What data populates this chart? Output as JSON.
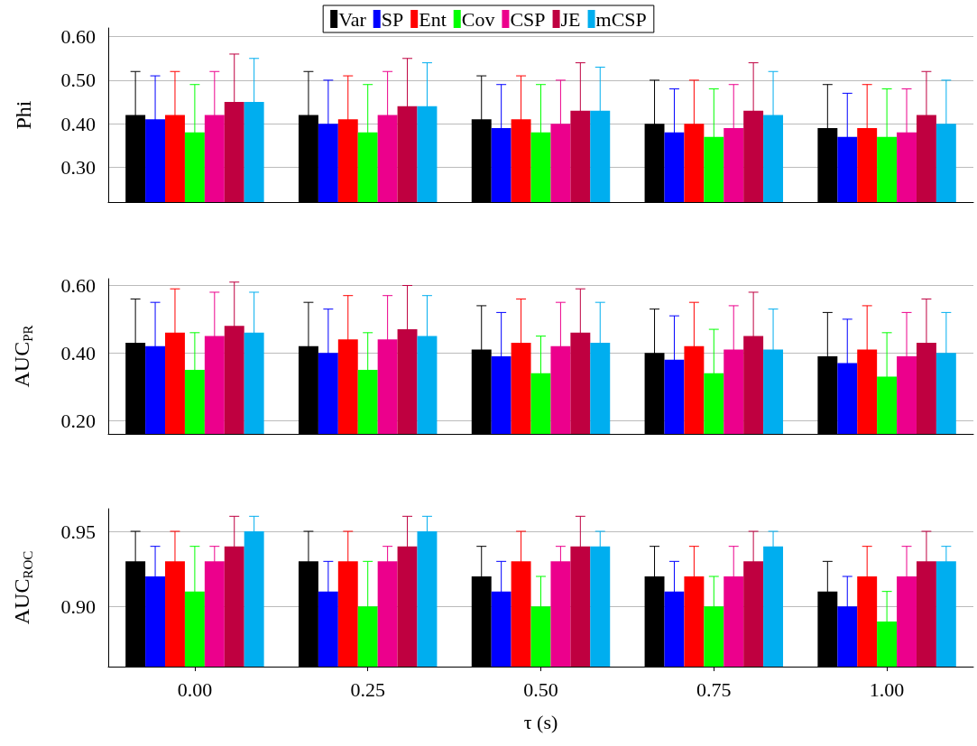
{
  "chart_data": [
    {
      "type": "bar",
      "ylabel": "Phi",
      "categories": [
        "0.00",
        "0.25",
        "0.50",
        "0.75",
        "1.00"
      ],
      "ylim": [
        0.22,
        0.62
      ],
      "yticks": [
        {
          "value": 0.3,
          "label": "0.30"
        },
        {
          "value": 0.4,
          "label": "0.40"
        },
        {
          "value": 0.5,
          "label": "0.50"
        },
        {
          "value": 0.6,
          "label": "0.60"
        }
      ],
      "grid": "y",
      "legend": "top",
      "tick_labels": "y",
      "series": [
        {
          "name": "Var",
          "color": "#000000",
          "values": [
            0.42,
            0.42,
            0.41,
            0.4,
            0.39
          ],
          "errors": [
            0.1,
            0.1,
            0.1,
            0.1,
            0.1
          ]
        },
        {
          "name": "SP",
          "color": "#0000ff",
          "values": [
            0.41,
            0.4,
            0.39,
            0.38,
            0.37
          ],
          "errors": [
            0.1,
            0.1,
            0.1,
            0.1,
            0.1
          ]
        },
        {
          "name": "Ent",
          "color": "#ff0000",
          "values": [
            0.42,
            0.41,
            0.41,
            0.4,
            0.39
          ],
          "errors": [
            0.1,
            0.1,
            0.1,
            0.1,
            0.1
          ]
        },
        {
          "name": "Cov",
          "color": "#00ff00",
          "values": [
            0.38,
            0.38,
            0.38,
            0.37,
            0.37
          ],
          "errors": [
            0.11,
            0.11,
            0.11,
            0.11,
            0.11
          ]
        },
        {
          "name": "CSP",
          "color": "#ec008c",
          "values": [
            0.42,
            0.42,
            0.4,
            0.39,
            0.38
          ],
          "errors": [
            0.1,
            0.1,
            0.1,
            0.1,
            0.1
          ]
        },
        {
          "name": "JE",
          "color": "#bf0040",
          "values": [
            0.45,
            0.44,
            0.43,
            0.43,
            0.42
          ],
          "errors": [
            0.11,
            0.11,
            0.11,
            0.11,
            0.1
          ]
        },
        {
          "name": "mCSP",
          "color": "#00aeef",
          "values": [
            0.45,
            0.44,
            0.43,
            0.42,
            0.4
          ],
          "errors": [
            0.1,
            0.1,
            0.1,
            0.1,
            0.1
          ]
        }
      ]
    },
    {
      "type": "bar",
      "ylabel": "AUC$_{PR}$",
      "categories": [
        "0.00",
        "0.25",
        "0.50",
        "0.75",
        "1.00"
      ],
      "ylim": [
        0.16,
        0.62
      ],
      "yticks": [
        {
          "value": 0.2,
          "label": "0.20"
        },
        {
          "value": 0.4,
          "label": "0.40"
        },
        {
          "value": 0.6,
          "label": "0.60"
        }
      ],
      "grid": "y",
      "tick_labels": "y",
      "series": [
        {
          "color": "#000000",
          "values": [
            0.43,
            0.42,
            0.41,
            0.4,
            0.39
          ],
          "errors": [
            0.13,
            0.13,
            0.13,
            0.13,
            0.13
          ]
        },
        {
          "color": "#0000ff",
          "values": [
            0.42,
            0.4,
            0.39,
            0.38,
            0.37
          ],
          "errors": [
            0.13,
            0.13,
            0.13,
            0.13,
            0.13
          ]
        },
        {
          "color": "#ff0000",
          "values": [
            0.46,
            0.44,
            0.43,
            0.42,
            0.41
          ],
          "errors": [
            0.13,
            0.13,
            0.13,
            0.13,
            0.13
          ]
        },
        {
          "color": "#00ff00",
          "values": [
            0.35,
            0.35,
            0.34,
            0.34,
            0.33
          ],
          "errors": [
            0.11,
            0.11,
            0.11,
            0.13,
            0.13
          ]
        },
        {
          "color": "#ec008c",
          "values": [
            0.45,
            0.44,
            0.42,
            0.41,
            0.39
          ],
          "errors": [
            0.13,
            0.13,
            0.13,
            0.13,
            0.13
          ]
        },
        {
          "color": "#bf0040",
          "values": [
            0.48,
            0.47,
            0.46,
            0.45,
            0.43
          ],
          "errors": [
            0.13,
            0.13,
            0.13,
            0.13,
            0.13
          ]
        },
        {
          "color": "#00aeef",
          "values": [
            0.46,
            0.45,
            0.43,
            0.41,
            0.4
          ],
          "errors": [
            0.12,
            0.12,
            0.12,
            0.12,
            0.12
          ]
        }
      ]
    },
    {
      "type": "bar",
      "ylabel": "AUC$_{ROC}$",
      "xlabel": "τ (s)",
      "categories": [
        "0.00",
        "0.25",
        "0.50",
        "0.75",
        "1.00"
      ],
      "ylim": [
        0.86,
        0.965
      ],
      "yticks": [
        {
          "value": 0.9,
          "label": "0.90"
        },
        {
          "value": 0.95,
          "label": "0.95"
        }
      ],
      "grid": "y",
      "series": [
        {
          "color": "#000000",
          "values": [
            0.93,
            0.93,
            0.92,
            0.92,
            0.91
          ],
          "errors": [
            0.02,
            0.02,
            0.02,
            0.02,
            0.02
          ]
        },
        {
          "color": "#0000ff",
          "values": [
            0.92,
            0.91,
            0.91,
            0.91,
            0.9
          ],
          "errors": [
            0.02,
            0.02,
            0.02,
            0.02,
            0.02
          ]
        },
        {
          "color": "#ff0000",
          "values": [
            0.93,
            0.93,
            0.93,
            0.92,
            0.92
          ],
          "errors": [
            0.02,
            0.02,
            0.02,
            0.02,
            0.02
          ]
        },
        {
          "color": "#00ff00",
          "values": [
            0.91,
            0.9,
            0.9,
            0.9,
            0.89
          ],
          "errors": [
            0.03,
            0.03,
            0.02,
            0.02,
            0.02
          ]
        },
        {
          "color": "#ec008c",
          "values": [
            0.93,
            0.93,
            0.93,
            0.92,
            0.92
          ],
          "errors": [
            0.01,
            0.01,
            0.01,
            0.02,
            0.02
          ]
        },
        {
          "color": "#bf0040",
          "values": [
            0.94,
            0.94,
            0.94,
            0.93,
            0.93
          ],
          "errors": [
            0.02,
            0.02,
            0.02,
            0.02,
            0.02
          ]
        },
        {
          "color": "#00aeef",
          "values": [
            0.95,
            0.95,
            0.94,
            0.94,
            0.93
          ],
          "errors": [
            0.01,
            0.01,
            0.01,
            0.01,
            0.01
          ]
        }
      ]
    }
  ]
}
